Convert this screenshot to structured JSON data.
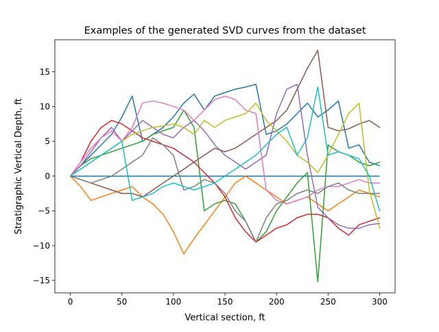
{
  "chart_data": {
    "type": "line",
    "title": "Examples of the generated SVD curves from the dataset",
    "xlabel": "Vertical section, ft",
    "ylabel": "Stratigraphic Vertical Depth, ft",
    "xlim": [
      -15,
      315
    ],
    "ylim": [
      -16.8,
      19.6
    ],
    "xticks": [
      0,
      50,
      100,
      150,
      200,
      250,
      300
    ],
    "yticks": [
      -15,
      -10,
      -5,
      0,
      5,
      10,
      15
    ],
    "grid": false,
    "legend": "none",
    "x": [
      0,
      10,
      20,
      30,
      40,
      50,
      60,
      70,
      80,
      90,
      100,
      110,
      120,
      130,
      140,
      150,
      160,
      170,
      180,
      190,
      200,
      210,
      220,
      230,
      240,
      250,
      260,
      270,
      280,
      290,
      300
    ],
    "series": [
      {
        "color": "#1f77b4",
        "values": [
          0,
          1.5,
          3,
          4.5,
          6,
          8.5,
          11.5,
          5,
          6,
          7,
          8.5,
          10.5,
          11.8,
          9.5,
          11.5,
          12,
          12.5,
          12.8,
          13.2,
          6,
          6.5,
          7.5,
          9,
          10.5,
          8.5,
          9.5,
          10.8,
          4,
          4.5,
          2,
          1.5
        ]
      },
      {
        "color": "#ff7f0e",
        "values": [
          0,
          -1.5,
          -3.5,
          -3,
          -2.5,
          -2,
          -1.5,
          -3,
          -4,
          -5.5,
          -8,
          -11.2,
          -9,
          -7,
          -5,
          -3,
          -1,
          0,
          -1,
          -2,
          -3,
          -4,
          -3.5,
          -3,
          -4,
          -5,
          -4,
          -3,
          -2,
          -2.5,
          -3
        ]
      },
      {
        "color": "#2ca02c",
        "values": [
          0,
          1.5,
          2.5,
          3,
          3.5,
          4,
          4.5,
          5,
          6,
          6.5,
          7,
          9.5,
          7,
          -5,
          -4,
          -3.5,
          -4,
          -6.5,
          -9.5,
          -8,
          -5,
          -3,
          -1,
          0.5,
          -15.2,
          4.5,
          3.5,
          3,
          2,
          1.5,
          2
        ]
      },
      {
        "color": "#d62728",
        "values": [
          0,
          2,
          5,
          7,
          8,
          7.5,
          6.5,
          5.5,
          5,
          4.5,
          4,
          3,
          2,
          0.5,
          -1,
          -3,
          -6,
          -8,
          -9.5,
          -8.5,
          -7.5,
          -7,
          -6,
          -5.5,
          -5.5,
          -6,
          -7.5,
          -8.5,
          -7,
          -6.5,
          -6
        ]
      },
      {
        "color": "#9467bd",
        "values": [
          0,
          1.5,
          3.5,
          5.5,
          7,
          5,
          6.5,
          8,
          7,
          6,
          5.5,
          7,
          8,
          6.5,
          4.5,
          3,
          2,
          1,
          2,
          3,
          9,
          12.5,
          13.2,
          3,
          -4.5,
          -6,
          -7,
          -7.5,
          -7.5,
          -7,
          -6.8
        ]
      },
      {
        "color": "#8c564b",
        "values": [
          0,
          -0.5,
          -1,
          -1.5,
          -2,
          -2.5,
          -2.5,
          -3,
          -2,
          -1,
          0,
          1,
          2,
          3,
          4,
          3.5,
          4,
          5,
          6,
          7,
          8,
          9.5,
          12.5,
          15.5,
          18.1,
          7,
          6.5,
          6.8,
          7.5,
          8,
          7
        ]
      },
      {
        "color": "#e377c2",
        "values": [
          0,
          2,
          4,
          5.5,
          6.5,
          5,
          7,
          10.5,
          10.8,
          10.5,
          10,
          9.5,
          8,
          9.5,
          11,
          11.5,
          11,
          9.5,
          9,
          -2,
          -3.5,
          -4,
          -3.5,
          -3,
          -2,
          -1.5,
          -1.5,
          -1,
          -0.5,
          -1,
          -1
        ]
      },
      {
        "color": "#7f7f7f",
        "values": [
          0,
          -0.5,
          -1,
          -0.5,
          0,
          1,
          2,
          3,
          5.5,
          4.5,
          3,
          -2,
          -1.5,
          -0.5,
          -1,
          -2.5,
          -5,
          -6.5,
          -9.5,
          -6,
          -4,
          -3.5,
          -2.5,
          -2,
          -2.5,
          -1.5,
          -1,
          -2,
          -2.5,
          -2.5,
          -2.5
        ]
      },
      {
        "color": "#bcbd22",
        "values": [
          0,
          1,
          2,
          3,
          4,
          5,
          6,
          6.5,
          7,
          7.2,
          7.5,
          7,
          6,
          8,
          7,
          8,
          8.5,
          9,
          10.5,
          8,
          6.5,
          5,
          3,
          2,
          0.5,
          3,
          6,
          9,
          10.5,
          -2,
          -7.5
        ]
      },
      {
        "color": "#17becf",
        "values": [
          0,
          1,
          2,
          3,
          4,
          5,
          -3.5,
          -3,
          -2.5,
          -1.5,
          -1,
          -1.5,
          -2,
          -1.5,
          -1,
          0,
          1,
          2,
          3,
          4.5,
          6,
          7,
          3,
          5.5,
          12.8,
          3,
          3.5,
          3,
          2.5,
          0,
          -5
        ]
      }
    ]
  }
}
